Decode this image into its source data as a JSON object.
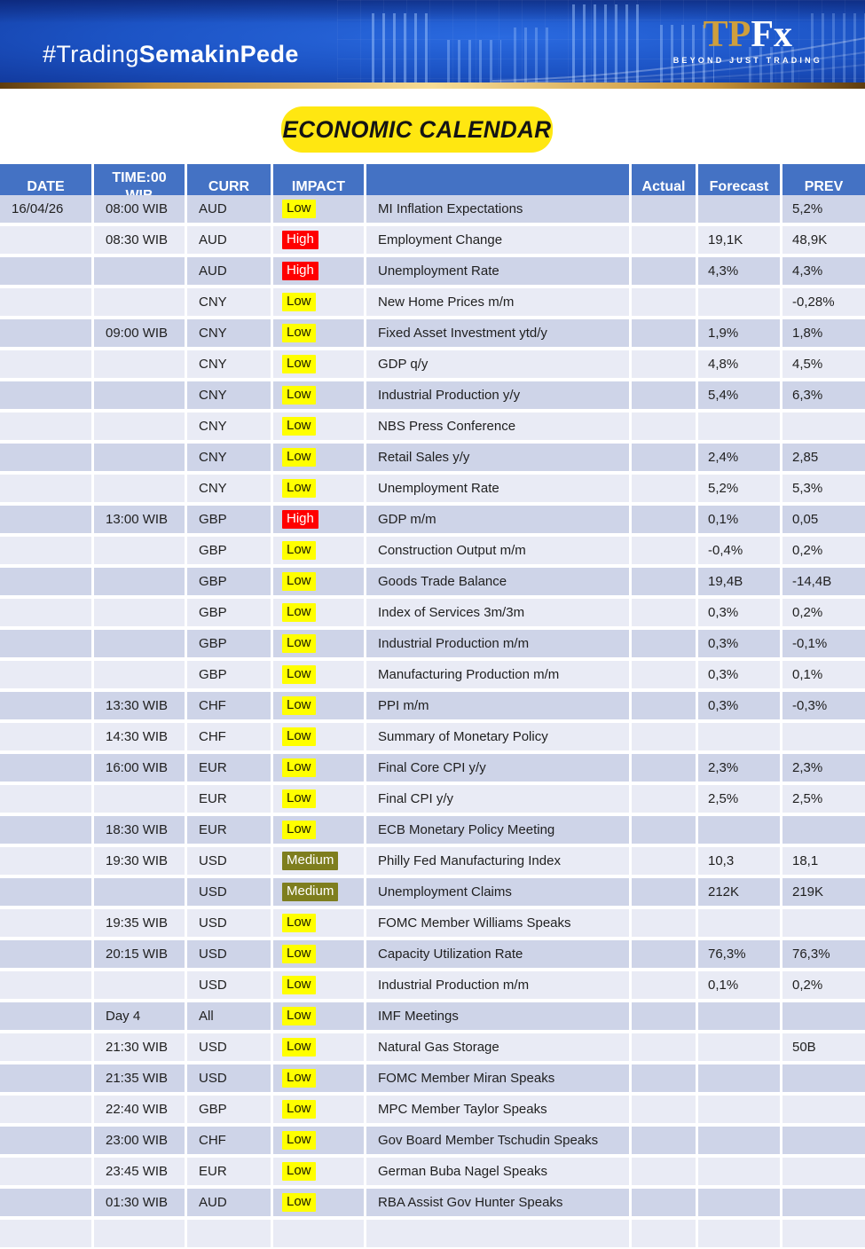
{
  "banner": {
    "hashtag_regular": "#Trading",
    "hashtag_bold": "SemakinPede",
    "logo_tp": "TP",
    "logo_fx": "Fx",
    "logo_tagline": "BEYOND JUST TRADING"
  },
  "title": "ECONOMIC CALENDAR",
  "colors": {
    "banner_blue": "#1c53c4",
    "gold_strip": "#c89339",
    "title_bg": "#ffe711",
    "header_blue": "#4472c4",
    "row_dark": "#ced4e8",
    "row_light": "#e9ebf5",
    "impact_low_bg": "#ffff00",
    "impact_high_bg": "#ff0000",
    "impact_medium_bg": "#7e7e1e"
  },
  "table": {
    "headers": {
      "date": "DATE",
      "time": "TIME:00\nWIB",
      "curr": "CURR",
      "impact": "IMPACT",
      "event": "",
      "actual": "Actual",
      "forecast": "Forecast",
      "prev": "PREV"
    },
    "rows": [
      {
        "date": "16/04/26",
        "time": "08:00 WIB",
        "curr": "AUD",
        "impact": "Low",
        "event": "MI Inflation Expectations",
        "actual": "",
        "forecast": "",
        "prev": "5,2%"
      },
      {
        "date": "",
        "time": "08:30 WIB",
        "curr": "AUD",
        "impact": "High",
        "event": "Employment Change",
        "actual": "",
        "forecast": "19,1K",
        "prev": "48,9K"
      },
      {
        "date": "",
        "time": "",
        "curr": "AUD",
        "impact": "High",
        "event": "Unemployment Rate",
        "actual": "",
        "forecast": "4,3%",
        "prev": "4,3%"
      },
      {
        "date": "",
        "time": "",
        "curr": "CNY",
        "impact": "Low",
        "event": "New Home Prices m/m",
        "actual": "",
        "forecast": "",
        "prev": "-0,28%"
      },
      {
        "date": "",
        "time": "09:00 WIB",
        "curr": "CNY",
        "impact": "Low",
        "event": "Fixed Asset Investment ytd/y",
        "actual": "",
        "forecast": "1,9%",
        "prev": "1,8%"
      },
      {
        "date": "",
        "time": "",
        "curr": "CNY",
        "impact": "Low",
        "event": "GDP q/y",
        "actual": "",
        "forecast": "4,8%",
        "prev": "4,5%"
      },
      {
        "date": "",
        "time": "",
        "curr": "CNY",
        "impact": "Low",
        "event": "Industrial Production y/y",
        "actual": "",
        "forecast": "5,4%",
        "prev": "6,3%"
      },
      {
        "date": "",
        "time": "",
        "curr": "CNY",
        "impact": "Low",
        "event": "NBS Press Conference",
        "actual": "",
        "forecast": "",
        "prev": ""
      },
      {
        "date": "",
        "time": "",
        "curr": "CNY",
        "impact": "Low",
        "event": "Retail Sales y/y",
        "actual": "",
        "forecast": "2,4%",
        "prev": "2,85"
      },
      {
        "date": "",
        "time": "",
        "curr": "CNY",
        "impact": "Low",
        "event": "Unemployment Rate",
        "actual": "",
        "forecast": "5,2%",
        "prev": "5,3%"
      },
      {
        "date": "",
        "time": "13:00 WIB",
        "curr": "GBP",
        "impact": "High",
        "event": "GDP m/m",
        "actual": "",
        "forecast": "0,1%",
        "prev": "0,05"
      },
      {
        "date": "",
        "time": "",
        "curr": "GBP",
        "impact": "Low",
        "event": "Construction Output m/m",
        "actual": "",
        "forecast": "-0,4%",
        "prev": "0,2%"
      },
      {
        "date": "",
        "time": "",
        "curr": "GBP",
        "impact": "Low",
        "event": "Goods Trade Balance",
        "actual": "",
        "forecast": "19,4B",
        "prev": "-14,4B"
      },
      {
        "date": "",
        "time": "",
        "curr": "GBP",
        "impact": "Low",
        "event": "Index of Services 3m/3m",
        "actual": "",
        "forecast": "0,3%",
        "prev": "0,2%"
      },
      {
        "date": "",
        "time": "",
        "curr": "GBP",
        "impact": "Low",
        "event": "Industrial Production m/m",
        "actual": "",
        "forecast": "0,3%",
        "prev": "-0,1%"
      },
      {
        "date": "",
        "time": "",
        "curr": "GBP",
        "impact": "Low",
        "event": "Manufacturing Production m/m",
        "actual": "",
        "forecast": "0,3%",
        "prev": "0,1%"
      },
      {
        "date": "",
        "time": "13:30 WIB",
        "curr": "CHF",
        "impact": "Low",
        "event": "PPI m/m",
        "actual": "",
        "forecast": "0,3%",
        "prev": "-0,3%"
      },
      {
        "date": "",
        "time": "14:30 WIB",
        "curr": "CHF",
        "impact": "Low",
        "event": "Summary of Monetary Policy",
        "actual": "",
        "forecast": "",
        "prev": ""
      },
      {
        "date": "",
        "time": "16:00 WIB",
        "curr": "EUR",
        "impact": "Low",
        "event": "Final Core CPI y/y",
        "actual": "",
        "forecast": "2,3%",
        "prev": "2,3%"
      },
      {
        "date": "",
        "time": "",
        "curr": "EUR",
        "impact": "Low",
        "event": "Final CPI y/y",
        "actual": "",
        "forecast": "2,5%",
        "prev": "2,5%"
      },
      {
        "date": "",
        "time": "18:30 WIB",
        "curr": "EUR",
        "impact": "Low",
        "event": "ECB Monetary Policy Meeting",
        "actual": "",
        "forecast": "",
        "prev": ""
      },
      {
        "date": "",
        "time": "19:30 WIB",
        "curr": "USD",
        "impact": "Medium",
        "event": "Philly Fed Manufacturing Index",
        "actual": "",
        "forecast": "10,3",
        "prev": "18,1"
      },
      {
        "date": "",
        "time": "",
        "curr": "USD",
        "impact": "Medium",
        "event": "Unemployment Claims",
        "actual": "",
        "forecast": "212K",
        "prev": "219K"
      },
      {
        "date": "",
        "time": "19:35 WIB",
        "curr": "USD",
        "impact": "Low",
        "event": "FOMC Member Williams Speaks",
        "actual": "",
        "forecast": "",
        "prev": ""
      },
      {
        "date": "",
        "time": "20:15 WIB",
        "curr": "USD",
        "impact": "Low",
        "event": "Capacity Utilization Rate",
        "actual": "",
        "forecast": "76,3%",
        "prev": "76,3%"
      },
      {
        "date": "",
        "time": "",
        "curr": "USD",
        "impact": "Low",
        "event": "Industrial Production m/m",
        "actual": "",
        "forecast": "0,1%",
        "prev": "0,2%"
      },
      {
        "date": "",
        "time": "Day 4",
        "curr": "All",
        "impact": "Low",
        "event": "IMF Meetings",
        "actual": "",
        "forecast": "",
        "prev": ""
      },
      {
        "date": "",
        "time": "21:30 WIB",
        "curr": "USD",
        "impact": "Low",
        "event": "Natural Gas Storage",
        "actual": "",
        "forecast": "",
        "prev": "50B"
      },
      {
        "date": "",
        "time": "21:35 WIB",
        "curr": "USD",
        "impact": "Low",
        "event": "FOMC Member Miran Speaks",
        "actual": "",
        "forecast": "",
        "prev": ""
      },
      {
        "date": "",
        "time": "22:40 WIB",
        "curr": "GBP",
        "impact": "Low",
        "event": "MPC Member Taylor Speaks",
        "actual": "",
        "forecast": "",
        "prev": ""
      },
      {
        "date": "",
        "time": "23:00 WIB",
        "curr": "CHF",
        "impact": "Low",
        "event": "Gov Board Member Tschudin Speaks",
        "actual": "",
        "forecast": "",
        "prev": ""
      },
      {
        "date": "",
        "time": "23:45 WIB",
        "curr": "EUR",
        "impact": "Low",
        "event": "German Buba Nagel Speaks",
        "actual": "",
        "forecast": "",
        "prev": ""
      },
      {
        "date": "",
        "time": "01:30 WIB",
        "curr": "AUD",
        "impact": "Low",
        "event": "RBA Assist Gov Hunter Speaks",
        "actual": "",
        "forecast": "",
        "prev": ""
      },
      {
        "date": "",
        "time": "",
        "curr": "",
        "impact": "",
        "event": "",
        "actual": "",
        "forecast": "",
        "prev": ""
      }
    ]
  }
}
